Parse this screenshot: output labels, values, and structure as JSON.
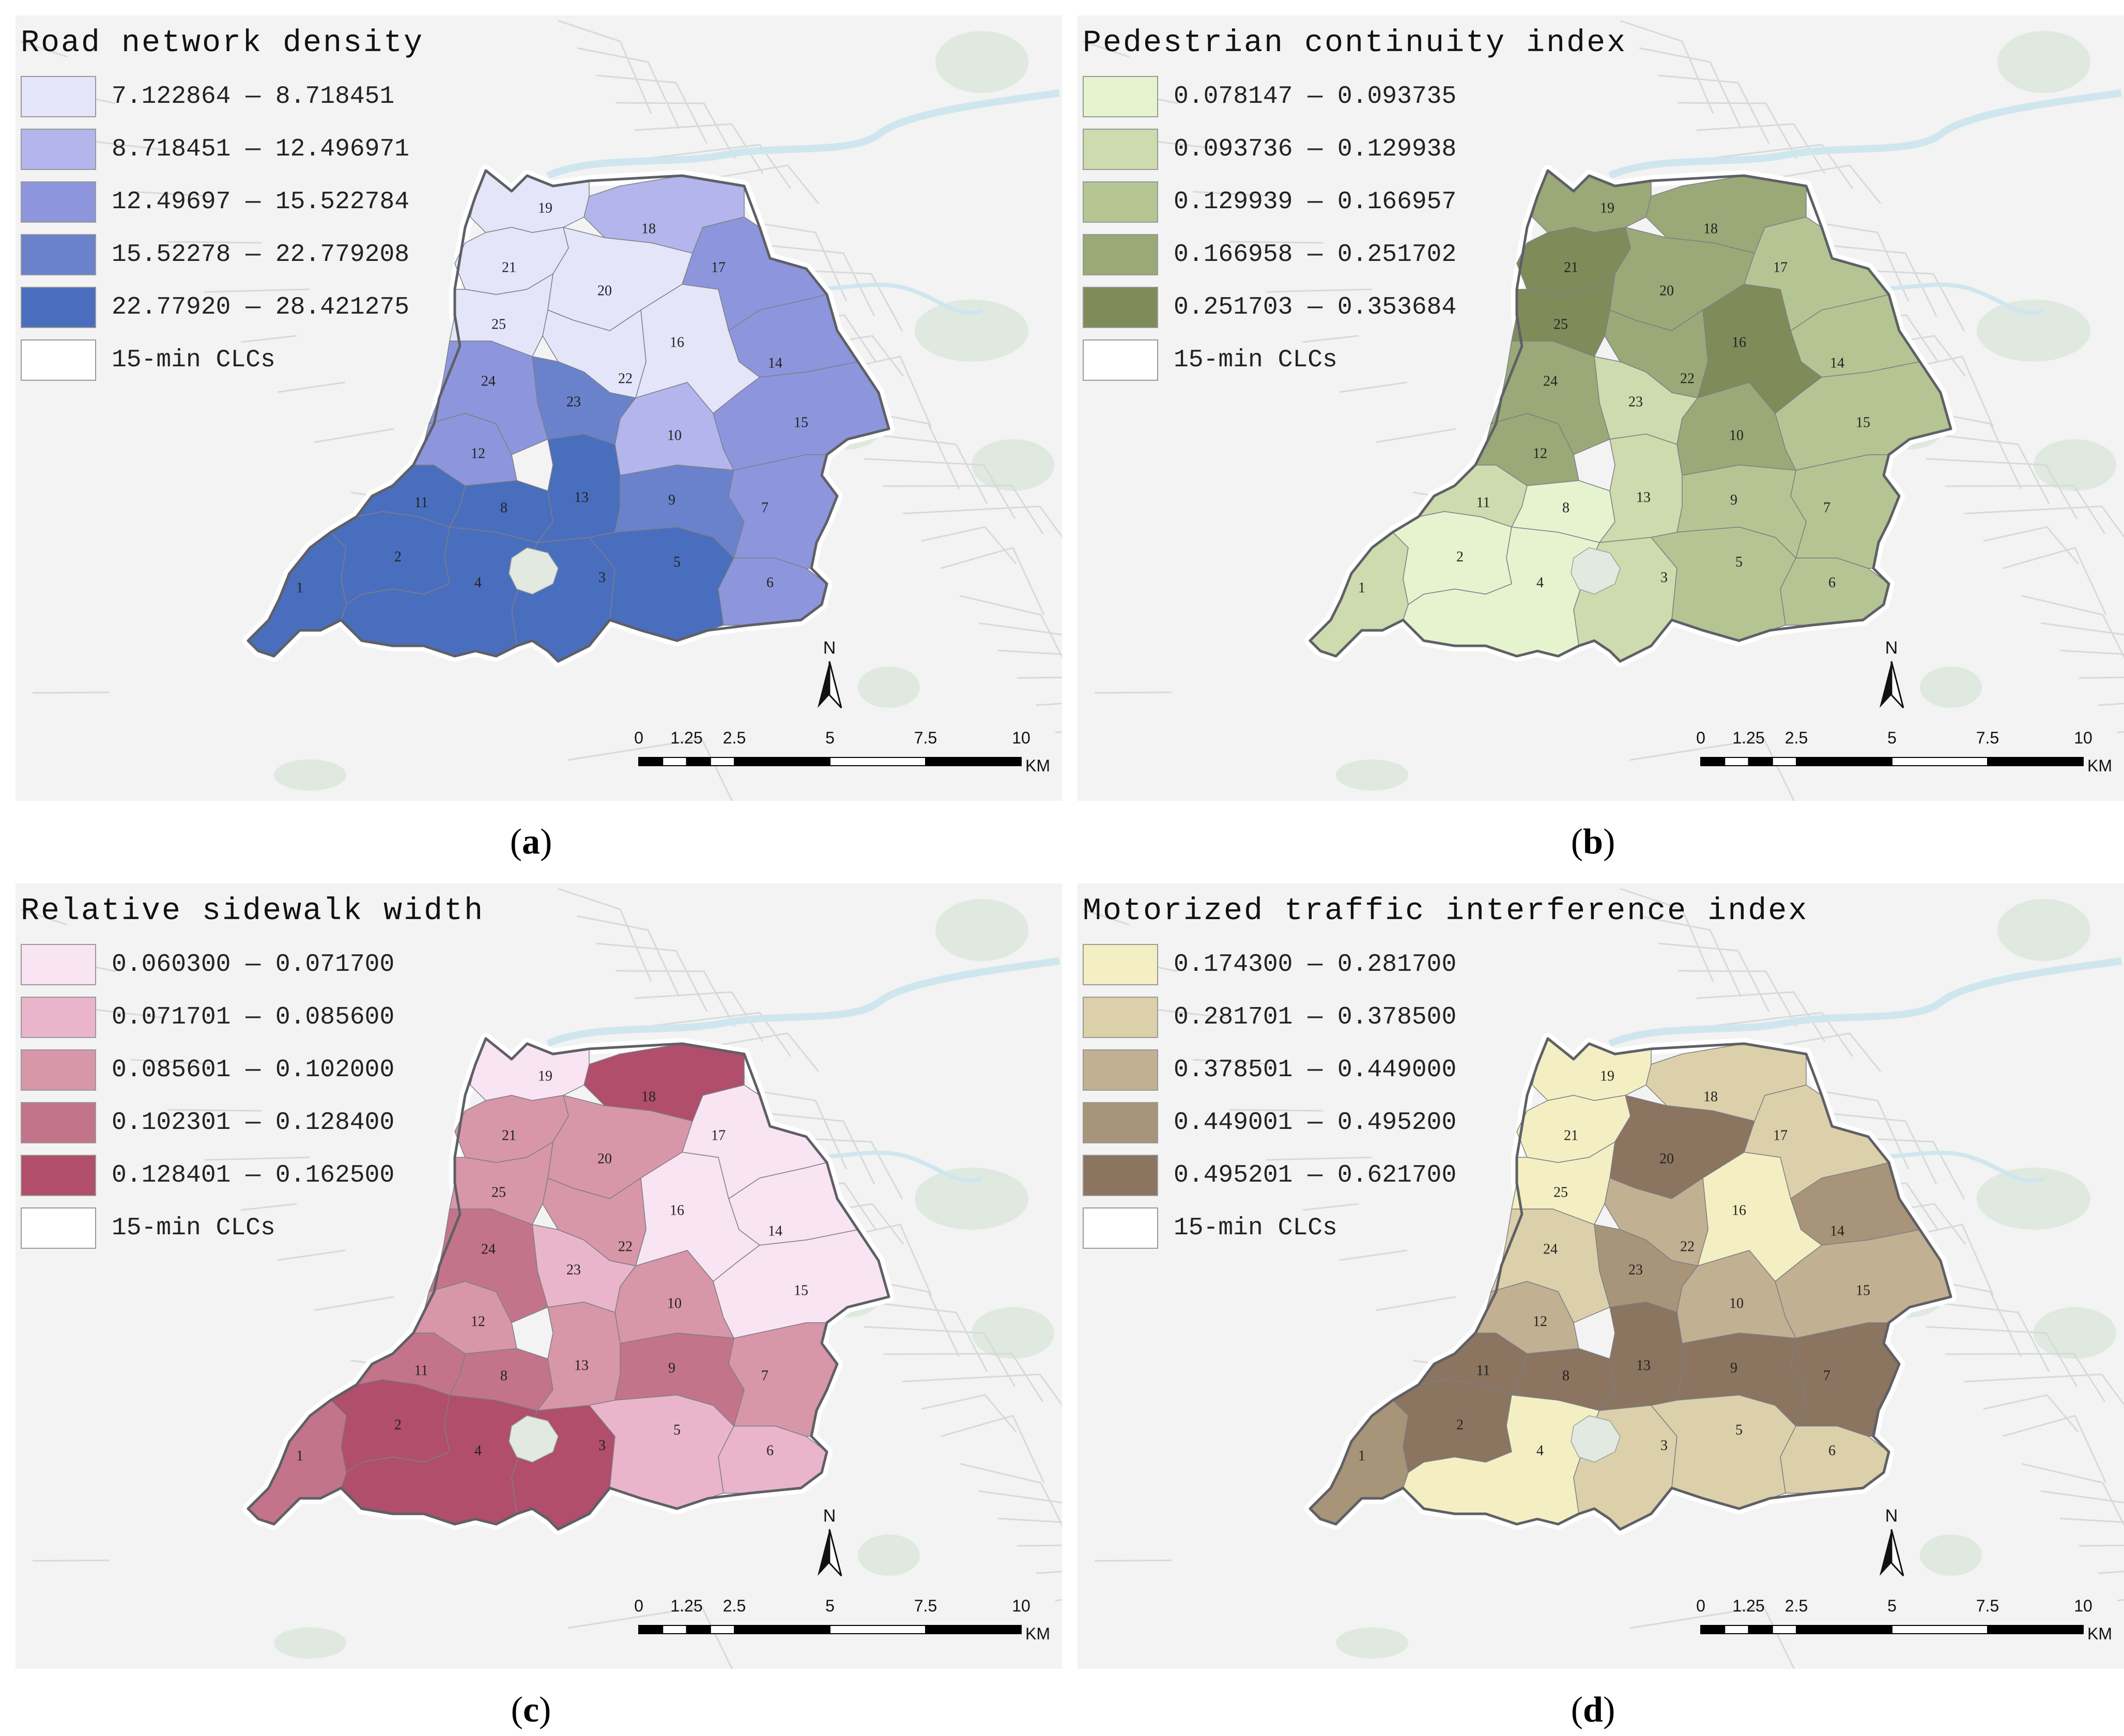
{
  "boundary_label": "15-min CLCs",
  "scale": {
    "ticks": [
      "0",
      "1.25",
      "2.5",
      "5",
      "7.5",
      "10"
    ],
    "unit": "KM"
  },
  "north_label": "N",
  "panels": [
    {
      "label": "a",
      "title": "Road network density",
      "classes": [
        {
          "range": "7.122864 — 8.718451",
          "color": "#e4e5f8"
        },
        {
          "range": "8.718451 — 12.496971",
          "color": "#b3b5ec"
        },
        {
          "range": "12.49697 — 15.522784",
          "color": "#8d96dc"
        },
        {
          "range": "15.52278 — 22.779208",
          "color": "#6a82cc"
        },
        {
          "range": "22.77920 — 28.421275",
          "color": "#4a6ebe"
        }
      ],
      "zone_classes": [
        5,
        5,
        5,
        5,
        5,
        3,
        3,
        5,
        4,
        2,
        5,
        3,
        5,
        3,
        3,
        1,
        3,
        2,
        1,
        1,
        1,
        1,
        4,
        3,
        1
      ]
    },
    {
      "label": "b",
      "title": "Pedestrian continuity index",
      "classes": [
        {
          "range": "0.078147 — 0.093735",
          "color": "#e6f3cf"
        },
        {
          "range": "0.093736 — 0.129938",
          "color": "#cddbae"
        },
        {
          "range": "0.129939 — 0.166957",
          "color": "#b4c593"
        },
        {
          "range": "0.166958 — 0.251702",
          "color": "#9aa977"
        },
        {
          "range": "0.251703 — 0.353684",
          "color": "#808b5a"
        }
      ],
      "zone_classes": [
        2,
        1,
        2,
        1,
        3,
        3,
        3,
        1,
        3,
        4,
        2,
        4,
        2,
        3,
        3,
        5,
        3,
        4,
        4,
        4,
        5,
        4,
        2,
        4,
        5
      ]
    },
    {
      "label": "c",
      "title": "Relative sidewalk width",
      "classes": [
        {
          "range": "0.060300 — 0.071700",
          "color": "#f9e4f3"
        },
        {
          "range": "0.071701 — 0.085600",
          "color": "#eab5ca"
        },
        {
          "range": "0.085601 — 0.102000",
          "color": "#d896a9"
        },
        {
          "range": "0.102301 — 0.128400",
          "color": "#c4748a"
        },
        {
          "range": "0.128401 — 0.162500",
          "color": "#b04e6c"
        }
      ],
      "zone_classes": [
        4,
        5,
        5,
        5,
        2,
        2,
        3,
        4,
        4,
        3,
        4,
        3,
        3,
        1,
        1,
        1,
        1,
        5,
        1,
        3,
        3,
        3,
        2,
        4,
        3
      ]
    },
    {
      "label": "d",
      "title": "Motorized traffic interference index",
      "classes": [
        {
          "range": "0.174300 — 0.281700",
          "color": "#f3efc2"
        },
        {
          "range": "0.281701 — 0.378500",
          "color": "#dcd0aa"
        },
        {
          "range": "0.378501 — 0.449000",
          "color": "#c2b092"
        },
        {
          "range": "0.449001 — 0.495200",
          "color": "#a89479"
        },
        {
          "range": "0.495201 — 0.621700",
          "color": "#8b7460"
        }
      ],
      "zone_classes": [
        4,
        5,
        2,
        1,
        2,
        2,
        5,
        5,
        5,
        3,
        5,
        3,
        5,
        4,
        3,
        1,
        2,
        2,
        1,
        5,
        1,
        3,
        4,
        2,
        1
      ]
    }
  ]
}
